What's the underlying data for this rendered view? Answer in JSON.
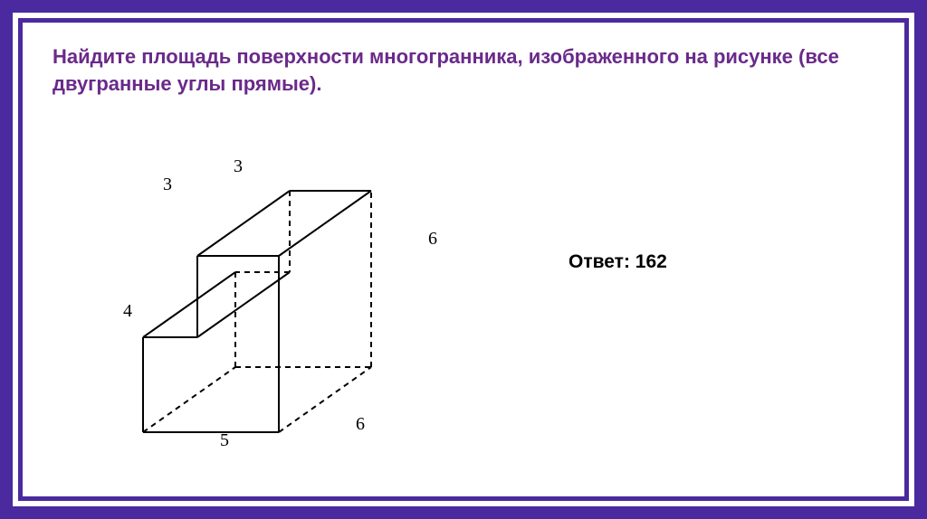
{
  "frame": {
    "outer_color": "#4a2a9e",
    "mid_color": "#ffffff",
    "inner_color": "#4a2a9e",
    "thin_color": "#ffffff",
    "border_thin": "#4a2a9e"
  },
  "question": {
    "text": "Найдите площадь поверхности многогранника, изображенного на рисунке (все двугранные углы прямые).",
    "color": "#6a2a8a"
  },
  "answer": {
    "label": "Ответ: 162"
  },
  "diagram": {
    "labels": {
      "top_front_depth": "3",
      "top_front_width": "3",
      "right_height": "6",
      "left_height": "4",
      "bottom_width": "5",
      "bottom_depth": "6"
    },
    "stroke": "#000000",
    "stroke_width": 2,
    "dash": "6,5"
  }
}
